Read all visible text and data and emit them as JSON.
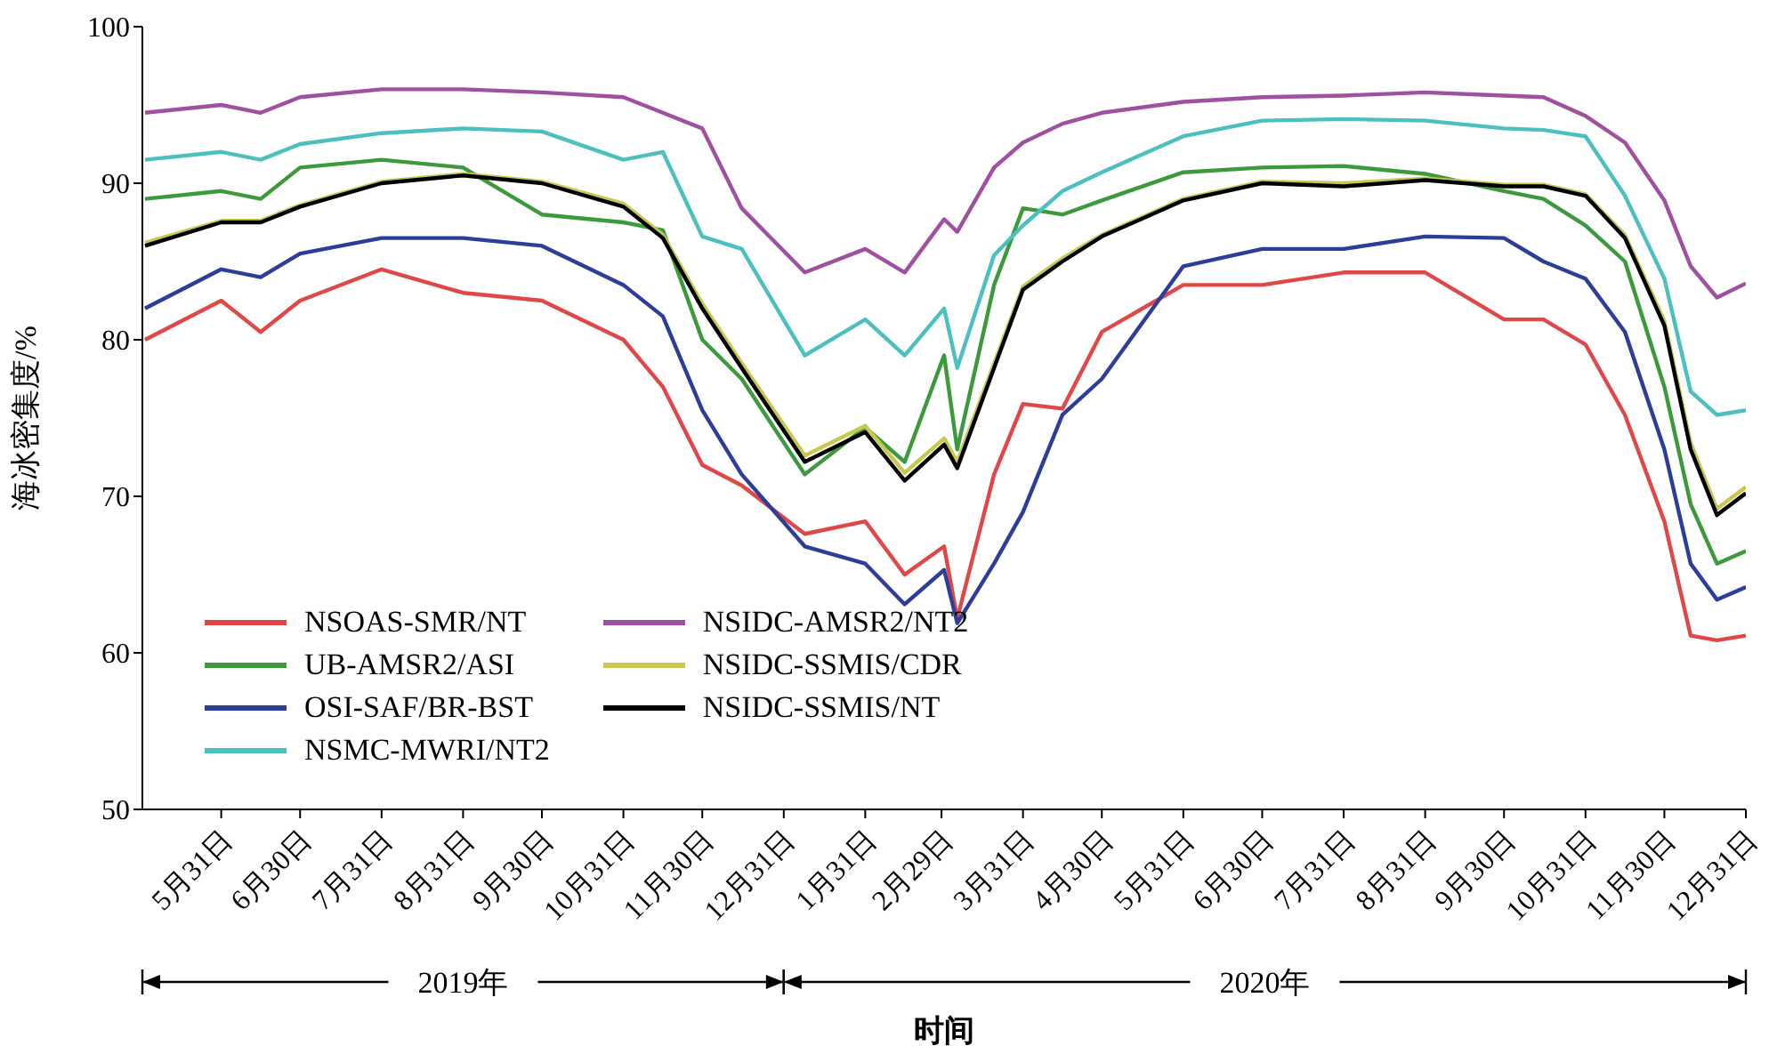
{
  "chart_data": {
    "type": "line",
    "xlabel": "时间",
    "ylabel": "海冰密集度/%",
    "annotations": [
      "2019年",
      "2020年"
    ],
    "x": [
      "2019-05-02",
      "2019-05-31",
      "2019-06-15",
      "2019-06-30",
      "2019-07-31",
      "2019-08-31",
      "2019-09-30",
      "2019-10-31",
      "2019-11-15",
      "2019-11-30",
      "2019-12-15",
      "2020-01-08",
      "2020-01-31",
      "2020-02-15",
      "2020-03-01",
      "2020-03-06",
      "2020-03-20",
      "2020-03-31",
      "2020-04-15",
      "2020-04-30",
      "2020-05-31",
      "2020-06-30",
      "2020-07-31",
      "2020-08-31",
      "2020-09-30",
      "2020-10-15",
      "2020-10-31",
      "2020-11-15",
      "2020-11-30",
      "2020-12-10",
      "2020-12-20",
      "2020-12-31"
    ],
    "xlim": [
      "2019-05-01",
      "2020-12-31"
    ],
    "xticks": [
      {
        "value": "2019-05-31",
        "label": "5月31日"
      },
      {
        "value": "2019-06-30",
        "label": "6月30日"
      },
      {
        "value": "2019-07-31",
        "label": "7月31日"
      },
      {
        "value": "2019-08-31",
        "label": "8月31日"
      },
      {
        "value": "2019-09-30",
        "label": "9月30日"
      },
      {
        "value": "2019-10-31",
        "label": "10月31日"
      },
      {
        "value": "2019-11-30",
        "label": "11月30日"
      },
      {
        "value": "2019-12-31",
        "label": "12月31日"
      },
      {
        "value": "2020-01-31",
        "label": "1月31日"
      },
      {
        "value": "2020-02-29",
        "label": "2月29日"
      },
      {
        "value": "2020-03-31",
        "label": "3月31日"
      },
      {
        "value": "2020-04-30",
        "label": "4月30日"
      },
      {
        "value": "2020-05-31",
        "label": "5月31日"
      },
      {
        "value": "2020-06-30",
        "label": "6月30日"
      },
      {
        "value": "2020-07-31",
        "label": "7月31日"
      },
      {
        "value": "2020-08-31",
        "label": "8月31日"
      },
      {
        "value": "2020-09-30",
        "label": "9月30日"
      },
      {
        "value": "2020-10-31",
        "label": "10月31日"
      },
      {
        "value": "2020-11-30",
        "label": "11月30日"
      },
      {
        "value": "2020-12-31",
        "label": "12月31日"
      }
    ],
    "ylim": [
      50,
      100
    ],
    "yticks": [
      50,
      60,
      70,
      80,
      90,
      100
    ],
    "grid": false,
    "legend": "bottom left",
    "marker": "none",
    "line_style": "solid",
    "series": [
      {
        "name": "NSOAS-SMR/NT",
        "color": "#e04848",
        "values": [
          80,
          82.5,
          80.5,
          82.5,
          84.5,
          83,
          82.5,
          80,
          77,
          72,
          70.7,
          67.6,
          68.4,
          65,
          66.8,
          62.2,
          71.4,
          75.9,
          75.6,
          80.5,
          83.5,
          83.5,
          84.3,
          84.3,
          81.3,
          81.3,
          79.7,
          75.2,
          68.4,
          61.1,
          60.8,
          61.1
        ]
      },
      {
        "name": "UB-AMSR2/ASI",
        "color": "#3c9a3c",
        "values": [
          89,
          89.5,
          89,
          91,
          91.5,
          91,
          88,
          87.5,
          87,
          80,
          77.5,
          71.4,
          74.4,
          72.2,
          79,
          73,
          83.5,
          88.4,
          88,
          88.9,
          90.7,
          91,
          91.1,
          90.6,
          89.5,
          89,
          87.3,
          85,
          77,
          69.5,
          65.7,
          66.5
        ]
      },
      {
        "name": "OSI-SAF/BR-BST",
        "color": "#2c3e9a",
        "values": [
          82,
          84.5,
          84,
          85.5,
          86.5,
          86.5,
          86,
          83.5,
          81.5,
          75.5,
          71.4,
          66.8,
          65.7,
          63.1,
          65.3,
          61.9,
          65.7,
          69,
          75.2,
          77.5,
          84.7,
          85.8,
          85.8,
          86.6,
          86.5,
          85,
          83.9,
          80.5,
          73,
          65.7,
          63.4,
          64.2
        ]
      },
      {
        "name": "NSMC-MWRI/NT2",
        "color": "#4cc0c0",
        "values": [
          91.5,
          92,
          91.5,
          92.5,
          93.2,
          93.5,
          93.3,
          91.5,
          92,
          86.6,
          85.8,
          79,
          81.3,
          79,
          82,
          78.2,
          85.4,
          87.3,
          89.5,
          90.7,
          93,
          94,
          94.1,
          94,
          93.5,
          93.4,
          93,
          89.2,
          83.9,
          76.7,
          75.2,
          75.5
        ]
      },
      {
        "name": "NSIDC-AMSR2/NT2",
        "color": "#a050a0",
        "values": [
          94.5,
          95,
          94.5,
          95.5,
          96,
          96,
          95.8,
          95.5,
          94.5,
          93.5,
          88.4,
          84.3,
          85.8,
          84.3,
          87.7,
          86.9,
          91,
          92.6,
          93.8,
          94.5,
          95.2,
          95.5,
          95.6,
          95.8,
          95.6,
          95.5,
          94.3,
          92.6,
          88.9,
          84.7,
          82.7,
          83.6
        ]
      },
      {
        "name": "NSIDC-SSMIS/CDR",
        "color": "#c8c850",
        "values": [
          86.2,
          87.6,
          87.6,
          88.6,
          90.1,
          90.6,
          90.1,
          88.7,
          86.7,
          82.3,
          78.5,
          72.6,
          74.5,
          71.5,
          73.7,
          72.2,
          78.5,
          83.4,
          85.2,
          86.7,
          89,
          90.1,
          90,
          90.3,
          89.9,
          89.9,
          89.3,
          86.7,
          81.2,
          73.4,
          69.2,
          70.6
        ]
      },
      {
        "name": "NSIDC-SSMIS/NT",
        "color": "#000000",
        "values": [
          86,
          87.5,
          87.5,
          88.5,
          90,
          90.5,
          90,
          88.5,
          86.5,
          82,
          78.2,
          72.2,
          74.1,
          71,
          73.3,
          71.8,
          78.2,
          83.2,
          85,
          86.6,
          88.9,
          90,
          89.8,
          90.2,
          89.8,
          89.8,
          89.2,
          86.5,
          80.9,
          73,
          68.8,
          70.2
        ]
      }
    ]
  }
}
